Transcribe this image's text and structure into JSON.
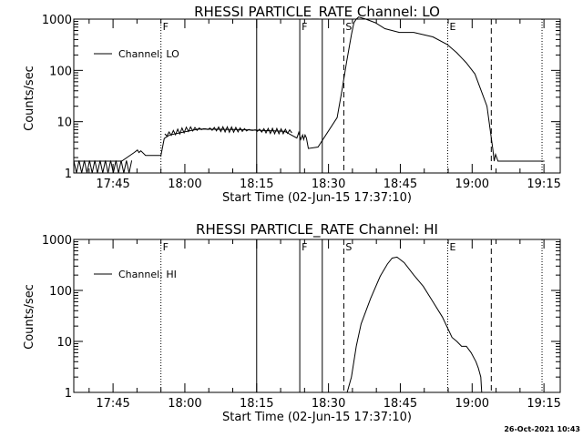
{
  "chart_data": [
    {
      "type": "line",
      "title": "RHESSI PARTICLE_RATE Channel: LO",
      "xlabel": "Start Time (02-Jun-15 17:37:10)",
      "ylabel": "Counts/sec",
      "x_units": "minutes after 17:37:10",
      "xlim": [
        0,
        101.6
      ],
      "x_ticks": [
        8.2,
        23.2,
        38.2,
        53.2,
        68.2,
        83.2,
        98.2
      ],
      "x_tick_labels": [
        "17:45",
        "18:00",
        "18:15",
        "18:30",
        "18:45",
        "19:00",
        "19:15"
      ],
      "yscale": "log",
      "ylim": [
        1,
        1000
      ],
      "y_ticks": [
        1,
        10,
        100,
        1000
      ],
      "y_tick_labels": [
        "1",
        "10",
        "100",
        "1000"
      ],
      "legend": "top-left",
      "series": [
        {
          "name": "Channel: LO",
          "x": [
            0,
            10,
            12.6,
            13.3,
            13.6,
            14,
            15,
            18.2,
            18.9,
            20,
            26,
            35,
            44,
            46.6,
            47,
            47.4,
            47.8,
            48,
            48.3,
            48.6,
            49,
            51,
            55,
            56,
            57,
            58,
            58.5,
            59,
            59.5,
            61,
            63,
            65,
            68,
            71,
            75,
            78,
            80,
            82,
            83.8,
            86.3,
            87.5,
            87.8,
            88.1,
            88.6,
            98.3
          ],
          "y": [
            1.7,
            1.7,
            2.5,
            2.8,
            2.5,
            2.7,
            2.2,
            2.2,
            4.7,
            5.5,
            7.2,
            7.0,
            6.5,
            4.8,
            6.2,
            4.5,
            5.5,
            4.5,
            5.5,
            4.8,
            3.0,
            3.2,
            12,
            40,
            150,
            500,
            850,
            1000,
            1100,
            1000,
            850,
            650,
            550,
            550,
            450,
            320,
            220,
            140,
            85,
            20,
            3,
            1.7,
            2.3,
            1.7,
            1.7
          ]
        }
      ],
      "flags": [
        {
          "t": 18.2,
          "label": "F",
          "style": "dotted"
        },
        {
          "t": 38.2,
          "label": "",
          "style": "solid"
        },
        {
          "t": 47.2,
          "label": "F",
          "style": "solid"
        },
        {
          "t": 51.9,
          "label": "",
          "style": "solid"
        },
        {
          "t": 56.4,
          "label": "S",
          "style": "dashed"
        },
        {
          "t": 78.1,
          "label": "E",
          "style": "dotted"
        },
        {
          "t": 87.2,
          "label": "",
          "style": "dashed"
        },
        {
          "t": 97.8,
          "label": "",
          "style": "dotted"
        }
      ]
    },
    {
      "type": "line",
      "title": "RHESSI PARTICLE_RATE Channel: HI",
      "xlabel": "Start Time (02-Jun-15 17:37:10)",
      "ylabel": "Counts/sec",
      "x_units": "minutes after 17:37:10",
      "xlim": [
        0,
        101.6
      ],
      "x_ticks": [
        8.2,
        23.2,
        38.2,
        53.2,
        68.2,
        83.2,
        98.2
      ],
      "x_tick_labels": [
        "17:45",
        "18:00",
        "18:15",
        "18:30",
        "18:45",
        "19:00",
        "19:15"
      ],
      "yscale": "log",
      "ylim": [
        1,
        1000
      ],
      "y_ticks": [
        1,
        10,
        100,
        1000
      ],
      "y_tick_labels": [
        "1",
        "10",
        "100",
        "1000"
      ],
      "legend": "top-left",
      "series": [
        {
          "name": "Channel: HI",
          "x": [
            57.1,
            58,
            59,
            60,
            62,
            64,
            65.5,
            66.5,
            67.5,
            69,
            71,
            73,
            75,
            77,
            79,
            80,
            81,
            82,
            83,
            84,
            84.5,
            85,
            85.2
          ],
          "y": [
            1,
            2,
            8,
            22,
            70,
            190,
            330,
            430,
            450,
            350,
            200,
            120,
            60,
            30,
            12,
            10,
            8,
            8,
            6,
            4,
            3,
            2,
            1
          ]
        }
      ],
      "flags": [
        {
          "t": 18.2,
          "label": "F",
          "style": "dotted"
        },
        {
          "t": 38.2,
          "label": "",
          "style": "solid"
        },
        {
          "t": 47.2,
          "label": "F",
          "style": "solid"
        },
        {
          "t": 51.9,
          "label": "",
          "style": "solid"
        },
        {
          "t": 56.4,
          "label": "S",
          "style": "dashed"
        },
        {
          "t": 78.1,
          "label": "E",
          "style": "dotted"
        },
        {
          "t": 87.2,
          "label": "",
          "style": "dashed"
        },
        {
          "t": 97.8,
          "label": "",
          "style": "dotted"
        }
      ]
    }
  ],
  "footer": {
    "timestamp": "26-Oct-2021 10:43"
  }
}
